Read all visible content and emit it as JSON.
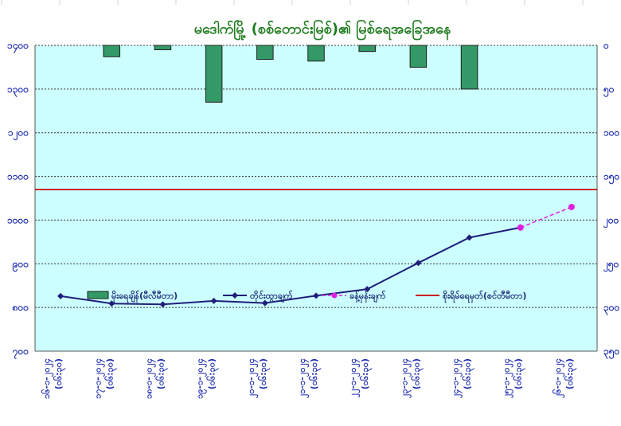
{
  "chart_data": {
    "type": "bar+line",
    "title": "မဒေါက်မြို့ (စစ်တောင်းမြစ်)၏ မြစ်ရေအခြေအနေ",
    "categories": [
      "၁၆-၁-၂၀၂၄",
      "၁၇-၁-၂၀၂၄",
      "၁၈-၁-၂၀၂၄",
      "၁၉-၁-၂၀၂၄",
      "၂၀-၁-၂၀၂၄",
      "၂၁-၁-၂၀၂၄",
      "၂၂-၁-၂၀၂၄",
      "၂၃-၁-၂၀၂၄",
      "၂၄-၁-၂၀၂၄",
      "၂၅-၁-၂၀၂၄",
      "၂၆-၁-၂၀၂၄"
    ],
    "category_time": "(၀၆:၃၀)",
    "left_axis": {
      "ticks": [
        "၁၄၀၀",
        "၁၃၀၀",
        "၁၂၀၀",
        "၁၁၀၀",
        "၁၀၀၀",
        "၉၀၀",
        "၈၀၀",
        "၇၀၀"
      ],
      "ylim": [
        700,
        1400
      ]
    },
    "right_axis": {
      "ticks": [
        "၀",
        "၅၀",
        "၁၀၀",
        "၁၅၀",
        "၂၀၀",
        "၂၅၀",
        "၃၀၀",
        "၃၅၀"
      ],
      "ylim": [
        0,
        350
      ],
      "inverted": true
    },
    "series": [
      {
        "name": "မိုးရေချိန်(မီလီမီတာ)",
        "kind": "bar",
        "axis": "right",
        "color": "#339966",
        "values": [
          0,
          13,
          5,
          65,
          16,
          18,
          7,
          25,
          50,
          0,
          0
        ]
      },
      {
        "name": "တိုင်းထွာချက်",
        "kind": "line",
        "axis": "left",
        "color": "#1F1F7A",
        "values": [
          826,
          809,
          807,
          815,
          810,
          827,
          842,
          902,
          960,
          983,
          null
        ]
      },
      {
        "name": "ခန့်မှန်းချက်",
        "kind": "dashed-line",
        "axis": "left",
        "color": "#E020E0",
        "values": [
          null,
          null,
          null,
          null,
          null,
          null,
          null,
          null,
          null,
          983,
          1030
        ]
      },
      {
        "name": "စိုးရိမ်ရေမှတ်(စင်တီမီတာ)",
        "kind": "hline",
        "axis": "left",
        "color": "#D02020",
        "value": 1070
      }
    ],
    "colors": {
      "plot_bg": "#CCFFFF",
      "bar": "#339966",
      "observed": "#1F1F7A",
      "forecast": "#E020E0",
      "danger": "#D02020",
      "axis_text": "#1F2FB0",
      "title": "#1E7B1E"
    },
    "legend_placement": "bottom-inside",
    "grid": "horizontal dashed"
  }
}
